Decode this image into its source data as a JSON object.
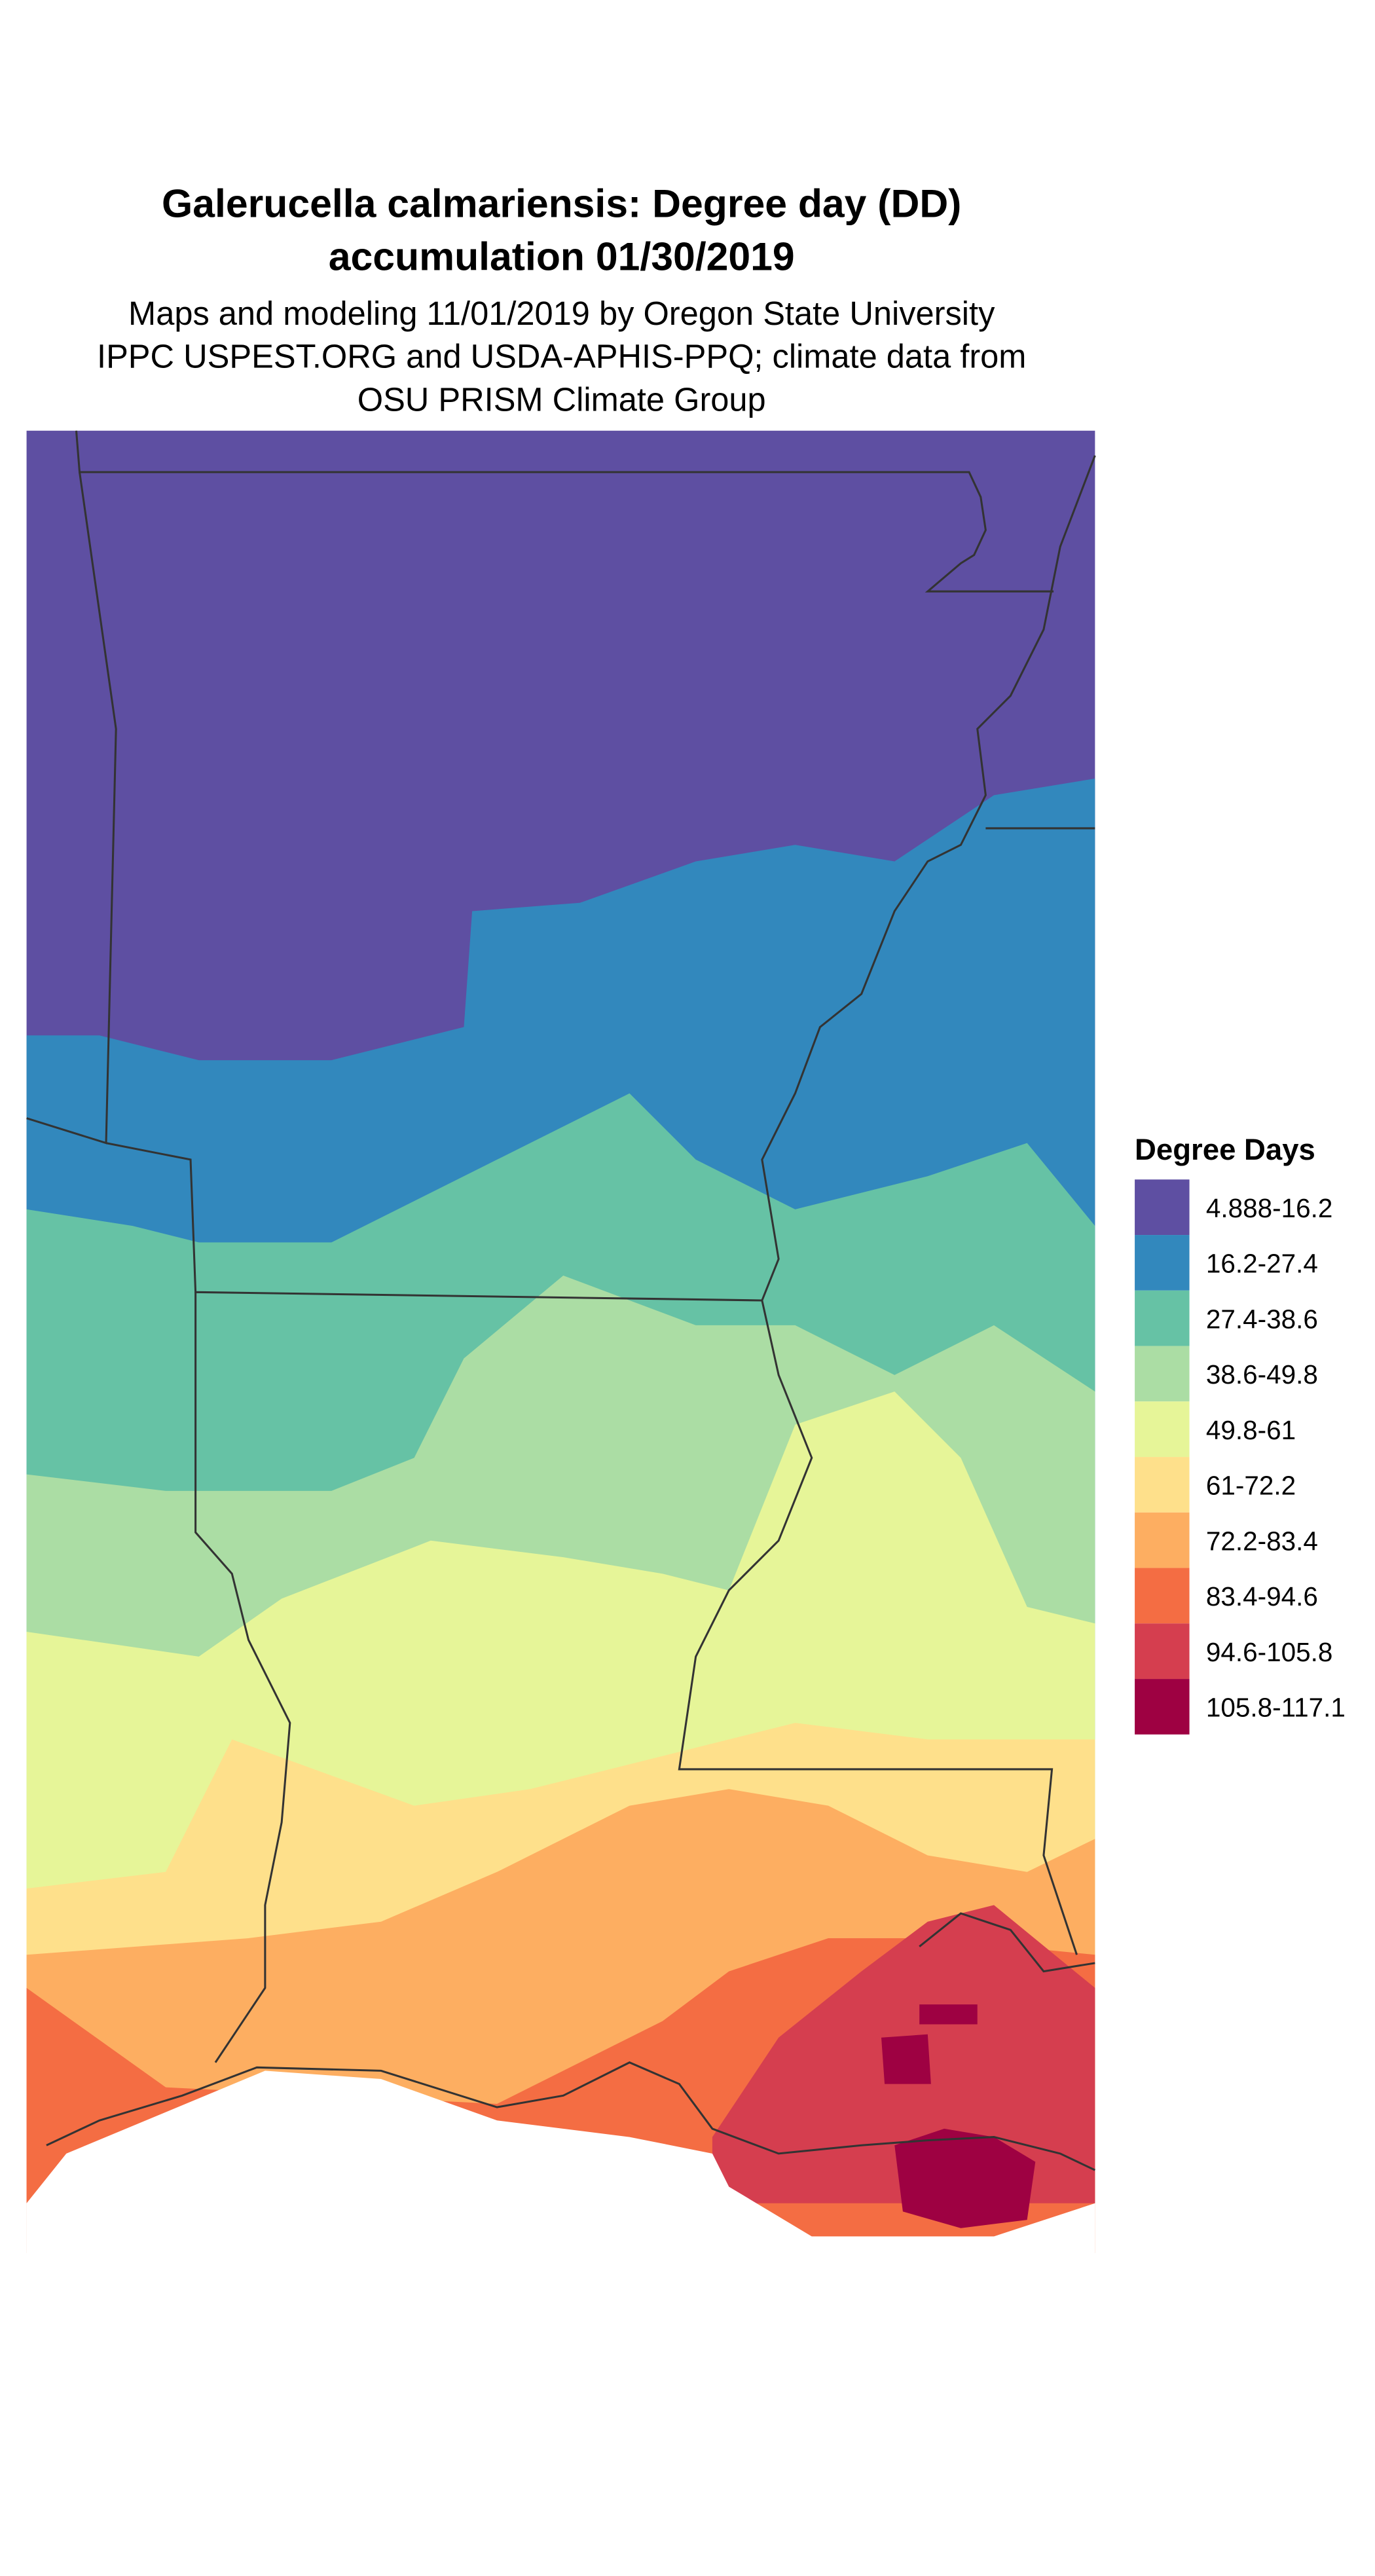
{
  "title": [
    "Galerucella calmariensis: Degree day (DD)",
    "accumulation 01/30/2019"
  ],
  "subtitle": [
    "Maps and modeling 11/01/2019 by Oregon State University",
    "IPPC USPEST.ORG and USDA-APHIS-PPQ; climate data from",
    "OSU PRISM Climate Group"
  ],
  "legend": {
    "title": "Degree Days",
    "items": [
      {
        "label": "4.888-16.2",
        "color": "#5E4FA2"
      },
      {
        "label": "16.2-27.4",
        "color": "#3288BD"
      },
      {
        "label": "27.4-38.6",
        "color": "#66C2A5"
      },
      {
        "label": "38.6-49.8",
        "color": "#ABDDA4"
      },
      {
        "label": "49.8-61",
        "color": "#E6F598"
      },
      {
        "label": "61-72.2",
        "color": "#FEE08B"
      },
      {
        "label": "72.2-83.4",
        "color": "#FDAE61"
      },
      {
        "label": "83.4-94.6",
        "color": "#F46D43"
      },
      {
        "label": "94.6-105.8",
        "color": "#D53E4F"
      },
      {
        "label": "105.8-117.1",
        "color": "#9E0142"
      }
    ]
  }
}
